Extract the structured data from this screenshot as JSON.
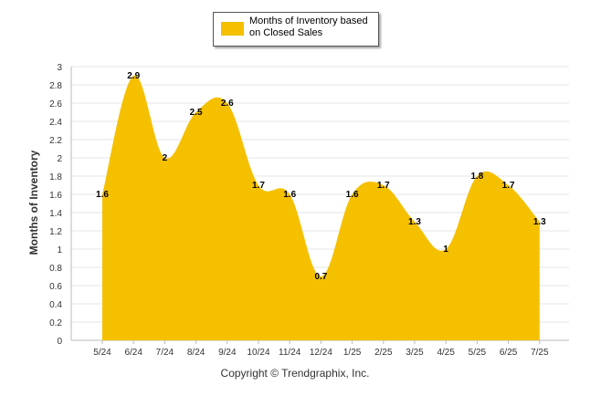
{
  "chart_data": {
    "type": "area",
    "categories": [
      "5/24",
      "6/24",
      "7/24",
      "8/24",
      "9/24",
      "10/24",
      "11/24",
      "12/24",
      "1/25",
      "2/25",
      "3/25",
      "4/25",
      "5/25",
      "6/25",
      "7/25"
    ],
    "series": [
      {
        "name": "Months of Inventory based on Closed Sales",
        "values": [
          1.6,
          2.9,
          2.0,
          2.5,
          2.6,
          1.7,
          1.6,
          0.7,
          1.6,
          1.7,
          1.3,
          1.0,
          1.8,
          1.7,
          1.3
        ],
        "data_labels": [
          "1.6",
          "2.9",
          "2",
          "2.5",
          "2.6",
          "1.7",
          "1.6",
          "0.7",
          "1.6",
          "1.7",
          "1.3",
          "1",
          "1.8",
          "1.7",
          "1.3"
        ]
      }
    ],
    "ylabel": "Months of Inventory",
    "xlabel": "",
    "ylim": [
      0,
      3
    ],
    "yticks": [
      "0",
      "0.2",
      "0.4",
      "0.6",
      "0.8",
      "1",
      "1.2",
      "1.4",
      "1.6",
      "1.8",
      "2",
      "2.2",
      "2.4",
      "2.6",
      "2.8",
      "3"
    ],
    "grid": true,
    "legend_position": "top-center",
    "fill_color": "#f5c000"
  },
  "legend": {
    "label": "Months of Inventory based on Closed Sales"
  },
  "footer": {
    "copyright": "Copyright © Trendgraphix, Inc."
  }
}
